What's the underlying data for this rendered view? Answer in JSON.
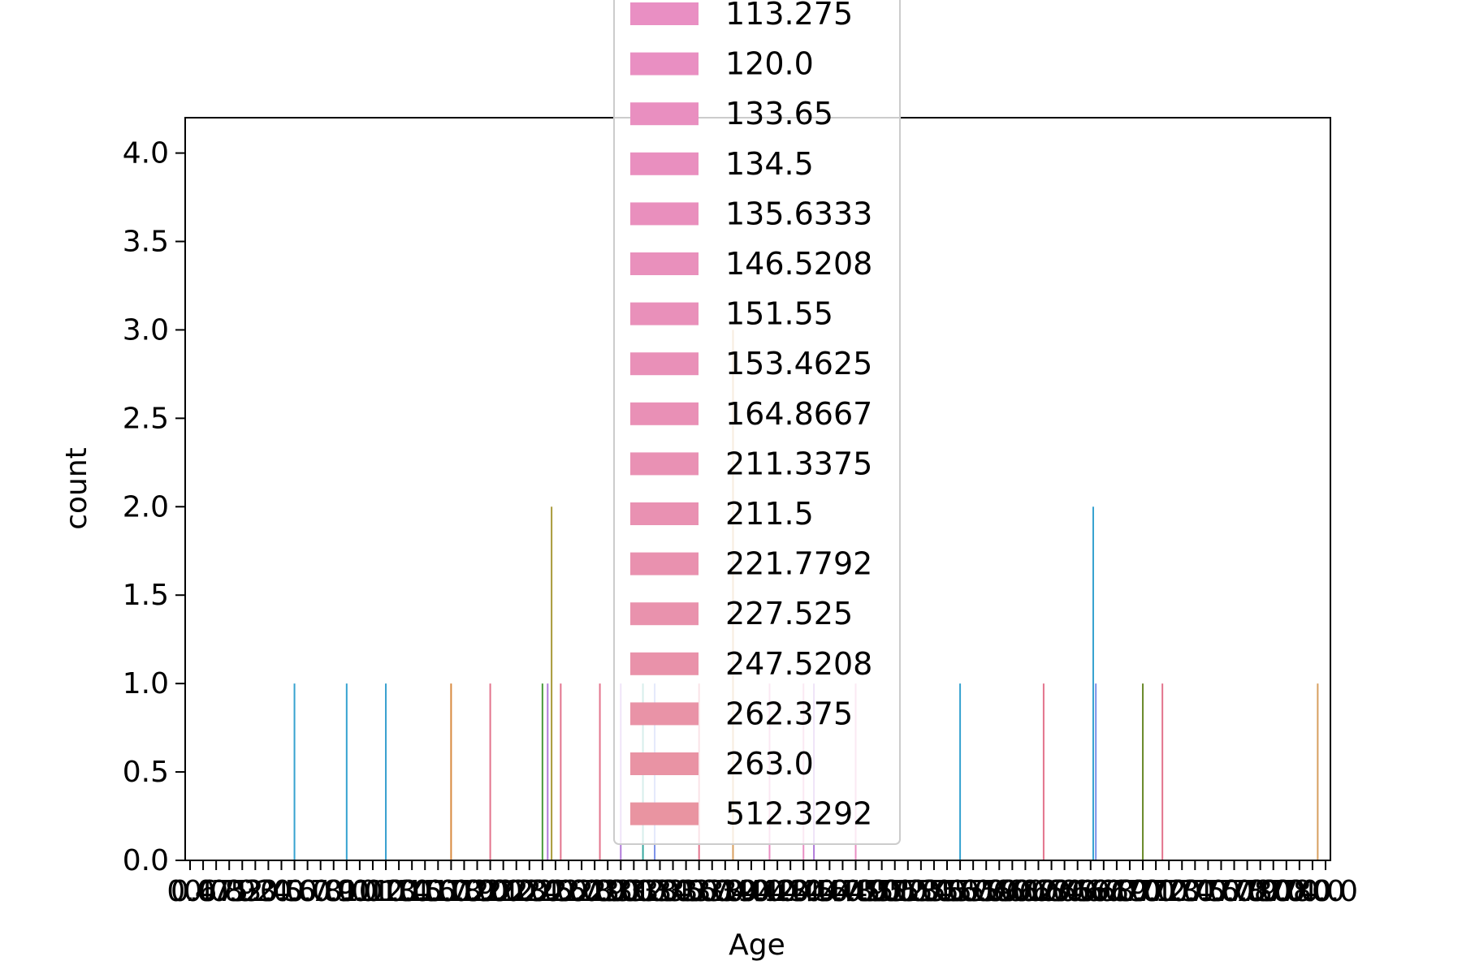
{
  "chart_data": {
    "type": "bar",
    "title": "",
    "xlabel": "Age",
    "ylabel": "count",
    "ylim": [
      0,
      4.2
    ],
    "yticks": [
      "0.0",
      "0.5",
      "1.0",
      "1.5",
      "2.0",
      "2.5",
      "3.0",
      "3.5",
      "4.0"
    ],
    "grid": false,
    "legend_placement": "upper-center",
    "legend_entries_visible": [
      {
        "label": "113.275",
        "color": "#e98fc3"
      },
      {
        "label": "120.0",
        "color": "#e98fc2"
      },
      {
        "label": "133.65",
        "color": "#e98fc0"
      },
      {
        "label": "134.5",
        "color": "#e98fbf"
      },
      {
        "label": "135.6333",
        "color": "#e98fbd"
      },
      {
        "label": "146.5208",
        "color": "#e990bc"
      },
      {
        "label": "151.55",
        "color": "#e990ba"
      },
      {
        "label": "153.4625",
        "color": "#e990b8"
      },
      {
        "label": "164.8667",
        "color": "#e990b6"
      },
      {
        "label": "211.3375",
        "color": "#e991b4"
      },
      {
        "label": "211.5",
        "color": "#e991b2"
      },
      {
        "label": "221.7792",
        "color": "#e991af"
      },
      {
        "label": "227.525",
        "color": "#e992ad"
      },
      {
        "label": "247.5208",
        "color": "#e992aa"
      },
      {
        "label": "262.375",
        "color": "#e993a7"
      },
      {
        "label": "263.0",
        "color": "#e993a4"
      },
      {
        "label": "512.3292",
        "color": "#e994a1"
      }
    ],
    "x_categories_count": 88,
    "bars": [
      {
        "category_index": 8,
        "value": 1,
        "color": "#36a2d0"
      },
      {
        "category_index": 12,
        "value": 1,
        "color": "#36a2d0"
      },
      {
        "category_index": 15,
        "value": 1,
        "color": "#38a0cf"
      },
      {
        "category_index": 20,
        "value": 1,
        "color": "#d88a3f"
      },
      {
        "category_index": 23,
        "value": 1,
        "color": "#e3748d"
      },
      {
        "category_index": 27,
        "value": 1,
        "color": "#4a9a3c"
      },
      {
        "category_index": 27.4,
        "value": 1,
        "color": "#b07ad9"
      },
      {
        "category_index": 27.7,
        "value": 2,
        "color": "#a89a3a"
      },
      {
        "category_index": 28.4,
        "value": 1,
        "color": "#e3748d"
      },
      {
        "category_index": 31.4,
        "value": 1,
        "color": "#e3748d"
      },
      {
        "category_index": 33,
        "value": 1,
        "color": "#b07ad9"
      },
      {
        "category_index": 34.7,
        "value": 1,
        "color": "#38a8a0"
      },
      {
        "category_index": 35.6,
        "value": 1,
        "color": "#7a90e8"
      },
      {
        "category_index": 39,
        "value": 1,
        "color": "#e3748d"
      },
      {
        "category_index": 41.6,
        "value": 3,
        "color": "#d8a060"
      },
      {
        "category_index": 44.4,
        "value": 1,
        "color": "#e98fc3"
      },
      {
        "category_index": 47,
        "value": 1,
        "color": "#e98fc3"
      },
      {
        "category_index": 47.8,
        "value": 1,
        "color": "#b07ad9"
      },
      {
        "category_index": 51,
        "value": 1,
        "color": "#e98fc3"
      },
      {
        "category_index": 59,
        "value": 1,
        "color": "#36a2d0"
      },
      {
        "category_index": 65.4,
        "value": 1,
        "color": "#e3748d"
      },
      {
        "category_index": 69.2,
        "value": 2,
        "color": "#36a2d0"
      },
      {
        "category_index": 69.4,
        "value": 1,
        "color": "#7a90e8"
      },
      {
        "category_index": 73,
        "value": 1,
        "color": "#6a8a2a"
      },
      {
        "category_index": 74.5,
        "value": 1,
        "color": "#e3748d"
      },
      {
        "category_index": 86.4,
        "value": 1,
        "color": "#d8a060"
      }
    ],
    "x_tick_label_fragments": [
      "0.4",
      "0.67",
      "0.75",
      "0.83",
      "0.92",
      "1.0",
      "2.0",
      "3.0",
      "4.0",
      "5.0",
      "6.0",
      "7.0",
      "8.0",
      "9.0",
      "10.0",
      "11.0",
      "12.0",
      "13.0",
      "14.0",
      "15.0",
      "16.0",
      "17.0",
      "18.0",
      "19.0",
      "20.0",
      "21.0",
      "22.0",
      "23.0",
      "24.0",
      "25.0",
      "26.0",
      "27.0",
      "28.0",
      "29.0",
      "30.0",
      "31.0",
      "32.0",
      "33.0",
      "34.0",
      "35.0",
      "36.0",
      "37.0",
      "38.0",
      "39.0",
      "40.0",
      "41.0",
      "42.0",
      "43.0",
      "44.0",
      "45.0",
      "46.0",
      "47.0",
      "48.0",
      "49.0",
      "50.0",
      "51.0",
      "52.0",
      "53.0",
      "54.0",
      "55.0",
      "56.0",
      "57.0",
      "58.0",
      "59.0",
      "60.0",
      "61.0",
      "62.0",
      "63.0",
      "64.0",
      "65.0",
      "66.0",
      "67.0",
      "68.0",
      "69.0",
      "70.0",
      "71.0",
      "72.0",
      "73.0",
      "74.0",
      "75.0",
      "76.0",
      "77.0",
      "78.0",
      "79.0",
      "80.0",
      "70.0",
      "74.0",
      "80.0"
    ]
  }
}
